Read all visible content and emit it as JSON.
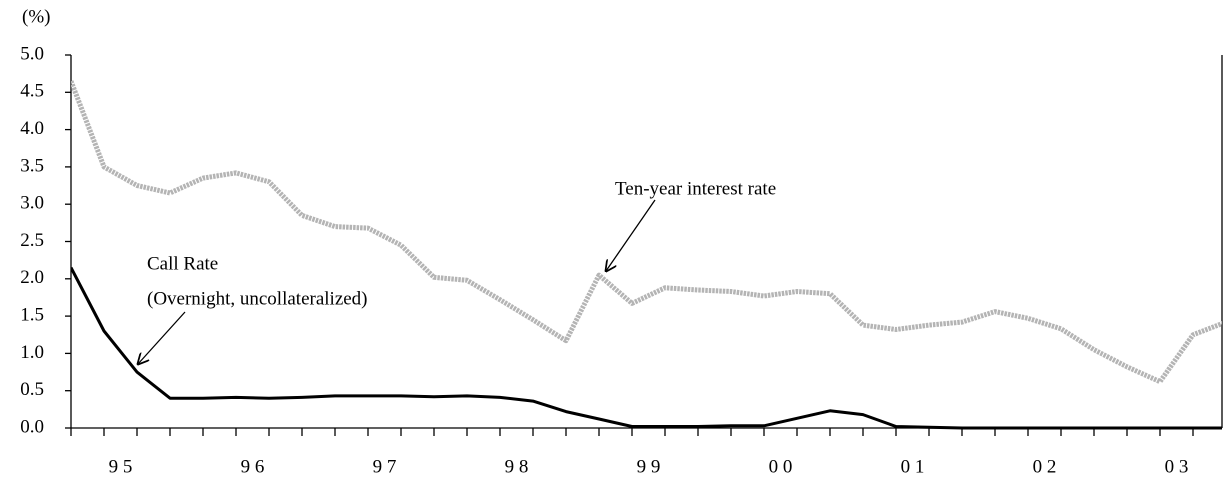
{
  "chart_data": {
    "type": "line",
    "y_label": "(%)",
    "categories": [
      null,
      "9 5",
      null,
      null,
      null,
      "9 6",
      null,
      null,
      null,
      "9 7",
      null,
      null,
      null,
      "9 8",
      null,
      null,
      null,
      "9 9",
      null,
      null,
      null,
      "0 0",
      null,
      null,
      null,
      "0 1",
      null,
      null,
      null,
      "0 2",
      null,
      null,
      null,
      "0 3",
      null,
      null
    ],
    "series": [
      {
        "name": "Call Rate",
        "color": "#000000",
        "values": [
          2.15,
          1.3,
          0.75,
          0.4,
          0.4,
          0.41,
          0.4,
          0.41,
          0.43,
          0.43,
          0.43,
          0.42,
          0.43,
          0.41,
          0.36,
          0.22,
          0.12,
          0.02,
          0.02,
          0.02,
          0.03,
          0.03,
          0.13,
          0.23,
          0.18,
          0.02,
          0.01,
          0.0,
          0.0,
          0.0,
          0.0,
          0.0,
          0.0,
          0.0,
          0.0,
          0.0
        ]
      },
      {
        "name": "Ten-year interest rate",
        "color": "#b4b4b4",
        "values": [
          4.65,
          3.5,
          3.25,
          3.15,
          3.35,
          3.42,
          3.3,
          2.85,
          2.7,
          2.68,
          2.45,
          2.02,
          1.98,
          1.72,
          1.45,
          1.17,
          2.05,
          1.67,
          1.88,
          1.85,
          1.83,
          1.77,
          1.83,
          1.8,
          1.38,
          1.32,
          1.38,
          1.42,
          1.56,
          1.47,
          1.33,
          1.05,
          0.82,
          0.62,
          1.25,
          1.42
        ]
      }
    ],
    "annotations": [
      "(Overnight, uncollateralized)"
    ],
    "ylim": [
      0,
      5
    ],
    "yticks": [
      {
        "value": 0,
        "label": "0.0"
      },
      0.5,
      {
        "value": 1,
        "label": "1.0"
      },
      1.5,
      {
        "value": 2,
        "label": "2.0"
      },
      2.5,
      {
        "value": 3,
        "label": "3.0"
      },
      3.5,
      {
        "value": 4,
        "label": "4.0"
      },
      4.5,
      {
        "value": 5,
        "label": "5.0"
      }
    ],
    "grid": false
  }
}
